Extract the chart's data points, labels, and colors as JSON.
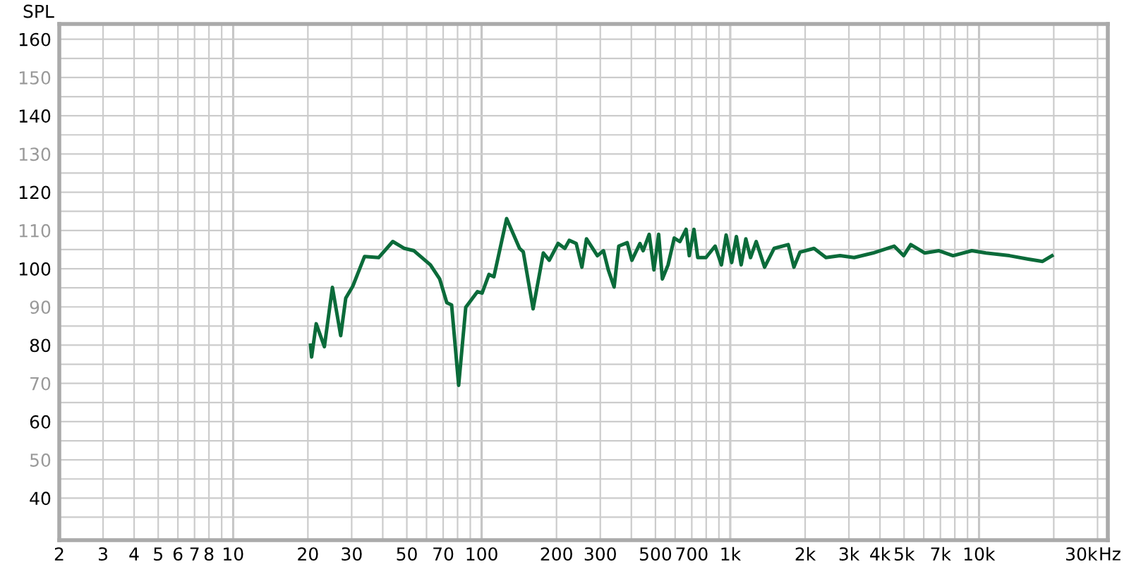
{
  "chart_data": {
    "type": "line",
    "ylabel": "SPL",
    "x": [
      20.5,
      20.7,
      21.6,
      23.3,
      25.1,
      27.1,
      28.4,
      30.3,
      33.8,
      38.5,
      43.9,
      48.9,
      53.4,
      62.2,
      67.8,
      72.4,
      75.7,
      80.8,
      86.3,
      96.2,
      100.4,
      107,
      112,
      126,
      142,
      147,
      161,
      177,
      187,
      203,
      216,
      225,
      240,
      253,
      264,
      292,
      309,
      323,
      341,
      356,
      385,
      402,
      433,
      446,
      472,
      493,
      515,
      533,
      562,
      595,
      627,
      664,
      684,
      714,
      740,
      798,
      869,
      921,
      962,
      1013,
      1058,
      1106,
      1155,
      1206,
      1271,
      1374,
      1500,
      1710,
      1803,
      1906,
      2172,
      2426,
      2763,
      3148,
      3750,
      4560,
      4980,
      5320,
      6060,
      6910,
      7870,
      9370,
      10670,
      13270,
      15810,
      18030,
      19670
    ],
    "series": [
      {
        "color": "#0b6b3a",
        "values": [
          80.0,
          76.9,
          85.6,
          79.6,
          95.1,
          82.5,
          92.3,
          95.4,
          103.2,
          102.9,
          107.1,
          105.3,
          104.7,
          101.0,
          97.3,
          91.1,
          90.5,
          69.5,
          89.9,
          94.0,
          93.6,
          98.5,
          97.9,
          113.1,
          105.3,
          104.4,
          89.5,
          104.1,
          102.2,
          106.6,
          105.3,
          107.4,
          106.6,
          100.4,
          107.8,
          103.4,
          104.7,
          99.7,
          95.2,
          105.9,
          106.8,
          102.2,
          106.6,
          104.7,
          109.0,
          99.7,
          109.0,
          97.3,
          101.0,
          108.0,
          107.1,
          110.3,
          103.4,
          110.3,
          102.9,
          102.9,
          105.9,
          101.0,
          108.8,
          101.6,
          108.4,
          101.0,
          107.8,
          102.9,
          107.1,
          100.4,
          105.3,
          106.3,
          100.4,
          104.3,
          105.3,
          102.9,
          103.4,
          102.9,
          104.1,
          105.9,
          103.4,
          106.3,
          104.1,
          104.7,
          103.4,
          104.7,
          104.1,
          103.4,
          102.5,
          101.9,
          103.4
        ]
      }
    ],
    "log": "x",
    "xlim": [
      2,
      33000
    ],
    "ylim": [
      29,
      164
    ],
    "xticks": [
      2,
      3,
      4,
      5,
      6,
      7,
      8,
      {
        "value": 9,
        "label": null
      },
      10,
      20,
      30,
      {
        "value": 40,
        "label": null
      },
      50,
      {
        "value": 60,
        "label": null
      },
      70,
      {
        "value": 80,
        "label": null
      },
      {
        "value": 90,
        "label": null
      },
      100,
      200,
      300,
      {
        "value": 400,
        "label": null
      },
      500,
      {
        "value": 600,
        "label": null
      },
      700,
      {
        "value": 800,
        "label": null
      },
      {
        "value": 900,
        "label": null
      },
      {
        "value": 1000,
        "label": "1k"
      },
      {
        "value": 2000,
        "label": "2k"
      },
      {
        "value": 3000,
        "label": "3k"
      },
      {
        "value": 4000,
        "label": "4k"
      },
      {
        "value": 5000,
        "label": "5k"
      },
      {
        "value": 6000,
        "label": null
      },
      {
        "value": 7000,
        "label": "7k"
      },
      {
        "value": 8000,
        "label": null
      },
      {
        "value": 9000,
        "label": null
      },
      {
        "value": 10000,
        "label": "10k"
      },
      {
        "value": 20000,
        "label": null
      },
      {
        "value": 30000,
        "label": "30k"
      }
    ],
    "xlabel": "Hz",
    "yticks": [
      {
        "value": 35,
        "label": null
      },
      40,
      {
        "value": 45,
        "label": null
      },
      50,
      {
        "value": 55,
        "label": null
      },
      60,
      {
        "value": 65,
        "label": null
      },
      70,
      {
        "value": 75,
        "label": null
      },
      80,
      {
        "value": 85,
        "label": null
      },
      90,
      {
        "value": 95,
        "label": null
      },
      100,
      {
        "value": 105,
        "label": null
      },
      110,
      {
        "value": 115,
        "label": null
      },
      120,
      {
        "value": 125,
        "label": null
      },
      130,
      {
        "value": 135,
        "label": null
      },
      140,
      {
        "value": 145,
        "label": null
      },
      150,
      {
        "value": 155,
        "label": null
      },
      160
    ],
    "grid": true,
    "marker": "none",
    "line_style": "solid"
  }
}
